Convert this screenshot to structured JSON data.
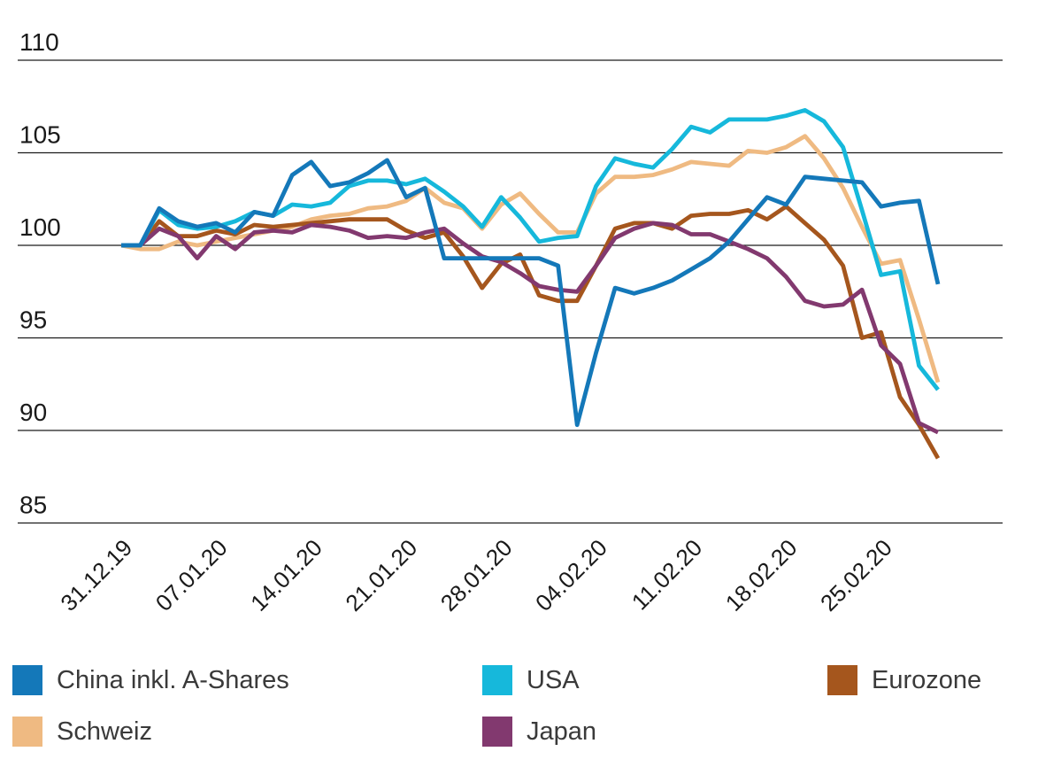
{
  "chart_data": {
    "type": "line",
    "title": "",
    "xlabel": "",
    "ylabel": "",
    "ylim": [
      85,
      110
    ],
    "grid": "horizontal",
    "legend_position": "bottom",
    "y_tick_labels": [
      "110",
      "105",
      "100",
      "95",
      "90",
      "85"
    ],
    "y_ticks": [
      110,
      105,
      100,
      95,
      90,
      85
    ],
    "x_tick_labels": [
      "31.12.19",
      "07.01.20",
      "14.01.20",
      "21.01.20",
      "28.01.20",
      "04.02.20",
      "11.02.20",
      "18.02.20",
      "25.02.20"
    ],
    "x": [
      "31.12.19",
      "01.01.20",
      "02.01.20",
      "03.01.20",
      "06.01.20",
      "07.01.20",
      "08.01.20",
      "09.01.20",
      "10.01.20",
      "13.01.20",
      "14.01.20",
      "15.01.20",
      "16.01.20",
      "17.01.20",
      "20.01.20",
      "21.01.20",
      "22.01.20",
      "23.01.20",
      "24.01.20",
      "27.01.20",
      "28.01.20",
      "29.01.20",
      "30.01.20",
      "31.01.20",
      "03.02.20",
      "04.02.20",
      "05.02.20",
      "06.02.20",
      "07.02.20",
      "10.02.20",
      "11.02.20",
      "12.02.20",
      "13.02.20",
      "14.02.20",
      "17.02.20",
      "18.02.20",
      "19.02.20",
      "20.02.20",
      "21.02.20",
      "24.02.20",
      "25.02.20",
      "26.02.20",
      "27.02.20",
      "28.02.20"
    ],
    "series": [
      {
        "name": "China inkl. A-Shares",
        "color": "#1478b9",
        "values": [
          100.0,
          100.0,
          102.0,
          101.3,
          101.0,
          101.2,
          100.7,
          101.8,
          101.6,
          103.8,
          104.5,
          103.2,
          103.4,
          103.9,
          104.6,
          102.6,
          103.1,
          99.3,
          99.3,
          99.3,
          99.3,
          99.3,
          99.3,
          98.9,
          90.3,
          94.2,
          97.7,
          97.4,
          97.7,
          98.1,
          98.7,
          99.3,
          100.2,
          101.4,
          102.6,
          102.2,
          103.7,
          103.6,
          103.5,
          103.4,
          102.1,
          102.3,
          102.4,
          97.9
        ]
      },
      {
        "name": "USA",
        "color": "#16b8db",
        "values": [
          100.0,
          100.0,
          101.9,
          101.1,
          100.9,
          101.0,
          101.3,
          101.8,
          101.6,
          102.2,
          102.1,
          102.3,
          103.2,
          103.5,
          103.5,
          103.3,
          103.6,
          102.9,
          102.1,
          101.0,
          102.6,
          101.5,
          100.2,
          100.4,
          100.5,
          103.2,
          104.7,
          104.4,
          104.2,
          105.2,
          106.4,
          106.1,
          106.8,
          106.8,
          106.8,
          107.0,
          107.3,
          106.7,
          105.3,
          101.9,
          98.4,
          98.6,
          93.5,
          92.2
        ]
      },
      {
        "name": "Eurozone",
        "color": "#a5561d",
        "values": [
          100.0,
          100.0,
          101.3,
          100.5,
          100.5,
          100.8,
          100.6,
          101.1,
          101.0,
          101.1,
          101.2,
          101.3,
          101.4,
          101.4,
          101.4,
          100.8,
          100.4,
          100.7,
          99.4,
          97.7,
          99.0,
          99.5,
          97.3,
          97.0,
          97.0,
          98.9,
          100.9,
          101.2,
          101.2,
          100.9,
          101.6,
          101.7,
          101.7,
          101.9,
          101.4,
          102.1,
          101.2,
          100.3,
          98.9,
          95.0,
          95.3,
          91.8,
          90.3,
          88.5
        ]
      },
      {
        "name": "Schweiz",
        "color": "#efba82",
        "values": [
          100.0,
          99.8,
          99.8,
          100.2,
          100.0,
          100.2,
          100.4,
          100.6,
          100.8,
          101.0,
          101.4,
          101.6,
          101.7,
          102.0,
          102.1,
          102.4,
          103.1,
          102.3,
          102.0,
          100.9,
          102.2,
          102.8,
          101.7,
          100.7,
          100.7,
          102.8,
          103.7,
          103.7,
          103.8,
          104.1,
          104.5,
          104.4,
          104.3,
          105.1,
          105.0,
          105.3,
          105.9,
          104.7,
          103.1,
          101.0,
          99.0,
          99.2,
          96.0,
          92.6
        ]
      },
      {
        "name": "Japan",
        "color": "#82396f",
        "values": [
          100.0,
          100.0,
          100.9,
          100.5,
          99.3,
          100.5,
          99.8,
          100.7,
          100.8,
          100.7,
          101.1,
          101.0,
          100.8,
          100.4,
          100.5,
          100.4,
          100.7,
          100.9,
          100.1,
          99.4,
          99.1,
          98.5,
          97.8,
          97.6,
          97.5,
          98.9,
          100.4,
          100.9,
          101.2,
          101.1,
          100.6,
          100.6,
          100.2,
          99.8,
          99.3,
          98.3,
          97.0,
          96.7,
          96.8,
          97.6,
          94.6,
          93.6,
          90.4,
          89.9
        ]
      }
    ],
    "axis_color": "#1c1c1c",
    "tick_label_color": "#1a1a1a"
  },
  "legend": {
    "items": [
      {
        "label": "China inkl. A-Shares",
        "color": "#1478b9"
      },
      {
        "label": "USA",
        "color": "#16b8db"
      },
      {
        "label": "Eurozone",
        "color": "#a5561d"
      },
      {
        "label": "Schweiz",
        "color": "#efba82"
      },
      {
        "label": "Japan",
        "color": "#82396f"
      }
    ]
  }
}
